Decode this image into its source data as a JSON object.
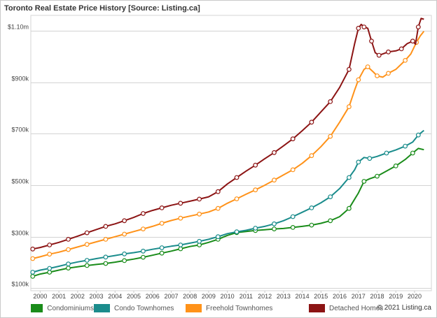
{
  "title": "Toronto Real Estate Price History [Source: Listing.ca]",
  "copyright": "© 2021 Listing.ca",
  "chart_data": {
    "type": "line",
    "title": "Toronto Real Estate Price History [Source: Listing.ca]",
    "xlabel": "",
    "ylabel": "",
    "x_ticks": [
      "2000",
      "2001",
      "2002",
      "2003",
      "2004",
      "2005",
      "2006",
      "2007",
      "2008",
      "2009",
      "2010",
      "2011",
      "2012",
      "2013",
      "2014",
      "2015",
      "2016",
      "2017",
      "2018",
      "2019",
      "2020"
    ],
    "y_ticks": [
      "$100k",
      "$300k",
      "$500k",
      "$700k",
      "$900k",
      "$1.10m"
    ],
    "y_tick_values": [
      100,
      300,
      500,
      700,
      900,
      1100
    ],
    "ylim": [
      90,
      1160
    ],
    "xlim": [
      1999.5,
      2020.9
    ],
    "grid": "horizontal",
    "legend": "bottom",
    "units": "thousands of dollars",
    "series": [
      {
        "name": "Condominiums",
        "color": "#1a8c1a",
        "points": [
          [
            1999.6,
            146
          ],
          [
            2000,
            155
          ],
          [
            2000.5,
            162
          ],
          [
            2001,
            170
          ],
          [
            2001.5,
            178
          ],
          [
            2002,
            183
          ],
          [
            2002.5,
            188
          ],
          [
            2003,
            192
          ],
          [
            2003.5,
            196
          ],
          [
            2004,
            201
          ],
          [
            2004.5,
            207
          ],
          [
            2005,
            213
          ],
          [
            2005.5,
            220
          ],
          [
            2006,
            228
          ],
          [
            2006.5,
            236
          ],
          [
            2007,
            244
          ],
          [
            2007.5,
            253
          ],
          [
            2008,
            262
          ],
          [
            2008.5,
            268
          ],
          [
            2009,
            278
          ],
          [
            2009.5,
            290
          ],
          [
            2010,
            305
          ],
          [
            2010.5,
            316
          ],
          [
            2011,
            320
          ],
          [
            2011.5,
            324
          ],
          [
            2012,
            327
          ],
          [
            2012.5,
            330
          ],
          [
            2013,
            332
          ],
          [
            2013.5,
            336
          ],
          [
            2014,
            340
          ],
          [
            2014.5,
            345
          ],
          [
            2015,
            352
          ],
          [
            2015.5,
            362
          ],
          [
            2016,
            378
          ],
          [
            2016.5,
            410
          ],
          [
            2017,
            470
          ],
          [
            2017.3,
            515
          ],
          [
            2017.6,
            525
          ],
          [
            2018,
            535
          ],
          [
            2018.5,
            555
          ],
          [
            2019,
            575
          ],
          [
            2019.5,
            600
          ],
          [
            2019.9,
            625
          ],
          [
            2020.2,
            643
          ],
          [
            2020.5,
            638
          ]
        ]
      },
      {
        "name": "Condo Townhomes",
        "color": "#1a8c8c",
        "points": [
          [
            1999.6,
            162
          ],
          [
            2000,
            170
          ],
          [
            2000.5,
            177
          ],
          [
            2001,
            185
          ],
          [
            2001.5,
            194
          ],
          [
            2002,
            202
          ],
          [
            2002.5,
            208
          ],
          [
            2003,
            215
          ],
          [
            2003.5,
            221
          ],
          [
            2004,
            227
          ],
          [
            2004.5,
            233
          ],
          [
            2005,
            238
          ],
          [
            2005.5,
            244
          ],
          [
            2006,
            251
          ],
          [
            2006.5,
            257
          ],
          [
            2007,
            263
          ],
          [
            2007.5,
            268
          ],
          [
            2008,
            275
          ],
          [
            2008.5,
            282
          ],
          [
            2009,
            290
          ],
          [
            2009.5,
            300
          ],
          [
            2010,
            312
          ],
          [
            2010.5,
            319
          ],
          [
            2011,
            325
          ],
          [
            2011.5,
            333
          ],
          [
            2012,
            340
          ],
          [
            2012.5,
            350
          ],
          [
            2013,
            362
          ],
          [
            2013.5,
            378
          ],
          [
            2014,
            395
          ],
          [
            2014.5,
            412
          ],
          [
            2015,
            432
          ],
          [
            2015.5,
            455
          ],
          [
            2016,
            487
          ],
          [
            2016.5,
            530
          ],
          [
            2016.8,
            560
          ],
          [
            2017,
            590
          ],
          [
            2017.3,
            608
          ],
          [
            2017.6,
            604
          ],
          [
            2018,
            612
          ],
          [
            2018.5,
            625
          ],
          [
            2019,
            637
          ],
          [
            2019.5,
            652
          ],
          [
            2019.9,
            668
          ],
          [
            2020.2,
            695
          ],
          [
            2020.5,
            713
          ]
        ]
      },
      {
        "name": "Freehold Townhomes",
        "color": "#ff9219",
        "points": [
          [
            1999.6,
            215
          ],
          [
            2000,
            222
          ],
          [
            2000.5,
            232
          ],
          [
            2001,
            240
          ],
          [
            2001.5,
            250
          ],
          [
            2002,
            260
          ],
          [
            2002.5,
            270
          ],
          [
            2003,
            280
          ],
          [
            2003.5,
            290
          ],
          [
            2004,
            300
          ],
          [
            2004.5,
            310
          ],
          [
            2005,
            320
          ],
          [
            2005.5,
            330
          ],
          [
            2006,
            340
          ],
          [
            2006.5,
            352
          ],
          [
            2007,
            363
          ],
          [
            2007.5,
            372
          ],
          [
            2008,
            380
          ],
          [
            2008.5,
            388
          ],
          [
            2009,
            396
          ],
          [
            2009.5,
            410
          ],
          [
            2010,
            430
          ],
          [
            2010.5,
            447
          ],
          [
            2011,
            465
          ],
          [
            2011.5,
            482
          ],
          [
            2012,
            500
          ],
          [
            2012.5,
            520
          ],
          [
            2013,
            540
          ],
          [
            2013.5,
            560
          ],
          [
            2014,
            585
          ],
          [
            2014.5,
            615
          ],
          [
            2015,
            650
          ],
          [
            2015.5,
            690
          ],
          [
            2016,
            745
          ],
          [
            2016.5,
            805
          ],
          [
            2016.8,
            870
          ],
          [
            2017,
            910
          ],
          [
            2017.3,
            950
          ],
          [
            2017.5,
            960
          ],
          [
            2017.8,
            940
          ],
          [
            2018,
            925
          ],
          [
            2018.3,
            920
          ],
          [
            2018.6,
            935
          ],
          [
            2019,
            950
          ],
          [
            2019.5,
            985
          ],
          [
            2019.8,
            1010
          ],
          [
            2020.1,
            1055
          ],
          [
            2020.3,
            1080
          ],
          [
            2020.5,
            1098
          ]
        ]
      },
      {
        "name": "Detached Homes",
        "color": "#8c1414",
        "points": [
          [
            1999.6,
            252
          ],
          [
            2000,
            258
          ],
          [
            2000.5,
            268
          ],
          [
            2001,
            278
          ],
          [
            2001.5,
            290
          ],
          [
            2002,
            302
          ],
          [
            2002.5,
            315
          ],
          [
            2003,
            328
          ],
          [
            2003.5,
            340
          ],
          [
            2004,
            350
          ],
          [
            2004.5,
            362
          ],
          [
            2005,
            375
          ],
          [
            2005.5,
            390
          ],
          [
            2006,
            402
          ],
          [
            2006.5,
            412
          ],
          [
            2007,
            422
          ],
          [
            2007.5,
            430
          ],
          [
            2008,
            438
          ],
          [
            2008.5,
            446
          ],
          [
            2009,
            455
          ],
          [
            2009.5,
            475
          ],
          [
            2010,
            505
          ],
          [
            2010.5,
            530
          ],
          [
            2011,
            555
          ],
          [
            2011.5,
            578
          ],
          [
            2012,
            603
          ],
          [
            2012.5,
            627
          ],
          [
            2013,
            653
          ],
          [
            2013.5,
            680
          ],
          [
            2014,
            712
          ],
          [
            2014.5,
            745
          ],
          [
            2015,
            785
          ],
          [
            2015.5,
            825
          ],
          [
            2016,
            880
          ],
          [
            2016.5,
            950
          ],
          [
            2016.8,
            1050
          ],
          [
            2017,
            1110
          ],
          [
            2017.15,
            1125
          ],
          [
            2017.3,
            1115
          ],
          [
            2017.5,
            1110
          ],
          [
            2017.7,
            1060
          ],
          [
            2017.9,
            1015
          ],
          [
            2018.1,
            1005
          ],
          [
            2018.3,
            1010
          ],
          [
            2018.6,
            1018
          ],
          [
            2019,
            1022
          ],
          [
            2019.3,
            1030
          ],
          [
            2019.6,
            1050
          ],
          [
            2019.9,
            1060
          ],
          [
            2020.05,
            1048
          ],
          [
            2020.2,
            1115
          ],
          [
            2020.35,
            1148
          ],
          [
            2020.5,
            1145
          ]
        ]
      }
    ]
  }
}
